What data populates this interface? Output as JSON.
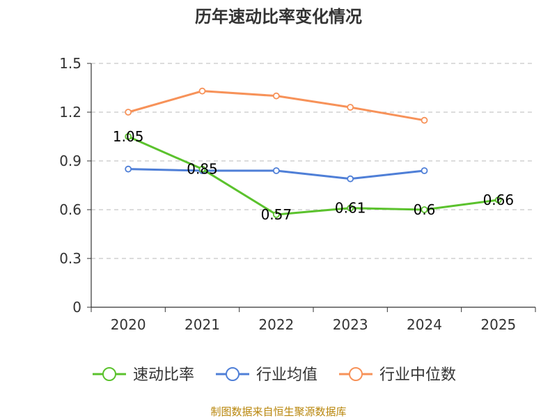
{
  "chart_data": {
    "type": "line",
    "title": "历年速动比率变化情况",
    "categories": [
      "2020",
      "2021",
      "2022",
      "2023",
      "2024",
      "2025"
    ],
    "ylim": [
      0,
      1.5
    ],
    "yticks": [
      "0",
      "0.3",
      "0.6",
      "0.9",
      "1.2",
      "1.5"
    ],
    "grid": true,
    "legend_position": "bottom",
    "series": [
      {
        "name": "速动比率",
        "color": "#5bc22d",
        "values": [
          1.05,
          0.85,
          0.57,
          0.61,
          0.6,
          0.66
        ],
        "labels": [
          "1.05",
          "0.85",
          "0.57",
          "0.61",
          "0.6",
          "0.66"
        ],
        "show_labels": true
      },
      {
        "name": "行业均值",
        "color": "#4f7fd7",
        "values": [
          0.85,
          0.84,
          0.84,
          0.79,
          0.84,
          null
        ],
        "show_labels": false
      },
      {
        "name": "行业中位数",
        "color": "#f79259",
        "values": [
          1.2,
          1.33,
          1.3,
          1.23,
          1.15,
          null
        ],
        "show_labels": false
      }
    ],
    "source": "制图数据来自恒生聚源数据库"
  }
}
